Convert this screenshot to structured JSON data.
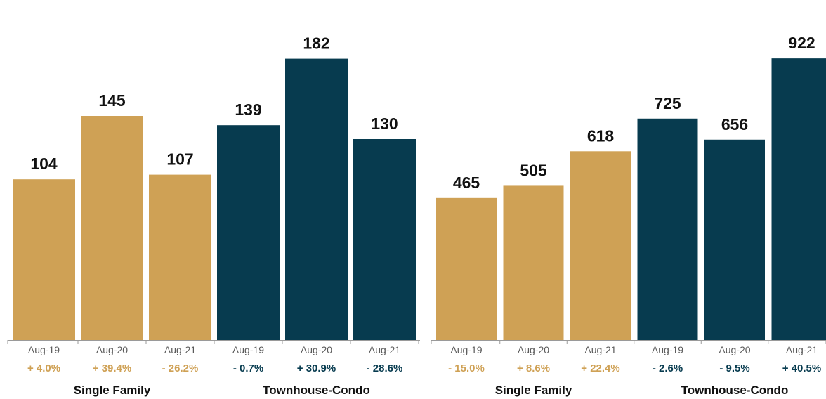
{
  "colors": {
    "gold": "#CFA155",
    "navy": "#073B4F",
    "axis": "#9a9a9a"
  },
  "chart_data": [
    {
      "type": "bar",
      "title": "",
      "ylim": [
        0,
        200
      ],
      "grid": false,
      "groups": [
        {
          "name": "Single Family",
          "color": "#CFA155",
          "categories": [
            "Aug-19",
            "Aug-20",
            "Aug-21"
          ],
          "values": [
            104,
            145,
            107
          ],
          "changes": [
            "+ 4.0%",
            "+ 39.4%",
            "- 26.2%"
          ]
        },
        {
          "name": "Townhouse-Condo",
          "color": "#073B4F",
          "categories": [
            "Aug-19",
            "Aug-20",
            "Aug-21"
          ],
          "values": [
            139,
            182,
            130
          ],
          "changes": [
            "- 0.7%",
            "+ 30.9%",
            "- 28.6%"
          ]
        }
      ]
    },
    {
      "type": "bar",
      "title": "",
      "ylim": [
        0,
        1012
      ],
      "grid": false,
      "groups": [
        {
          "name": "Single Family",
          "color": "#CFA155",
          "categories": [
            "Aug-19",
            "Aug-20",
            "Aug-21"
          ],
          "values": [
            465,
            505,
            618
          ],
          "changes": [
            "- 15.0%",
            "+ 8.6%",
            "+ 22.4%"
          ]
        },
        {
          "name": "Townhouse-Condo",
          "color": "#073B4F",
          "categories": [
            "Aug-19",
            "Aug-20",
            "Aug-21"
          ],
          "values": [
            725,
            656,
            922
          ],
          "changes": [
            "- 2.6%",
            "- 9.5%",
            "+ 40.5%"
          ]
        }
      ]
    }
  ]
}
